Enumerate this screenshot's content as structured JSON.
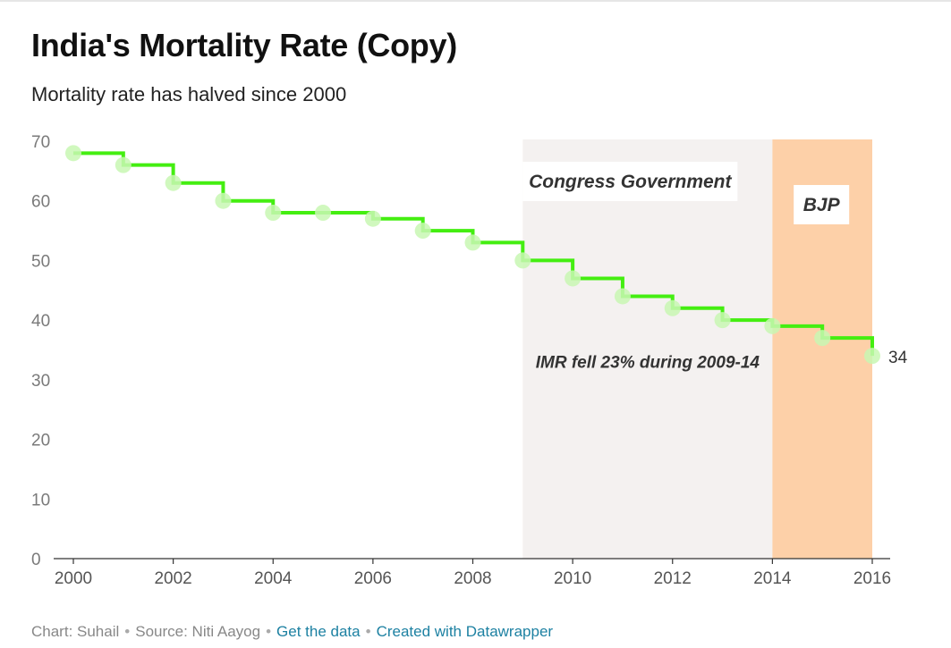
{
  "header": {
    "title": "India's Mortality Rate (Copy)",
    "subtitle": "Mortality rate has halved since 2000"
  },
  "footer": {
    "credit": "Chart: Suhail",
    "source": "Source: Niti Aayog",
    "get_data_label": "Get the data",
    "created_label": "Created with Datawrapper",
    "separator": "•"
  },
  "chart_data": {
    "type": "line",
    "interpolation": "step",
    "x": [
      2000,
      2001,
      2002,
      2003,
      2004,
      2005,
      2006,
      2007,
      2008,
      2009,
      2010,
      2011,
      2012,
      2013,
      2014,
      2015,
      2016
    ],
    "series": [
      {
        "values": [
          68,
          66,
          63,
          60,
          58,
          58,
          57,
          55,
          53,
          50,
          47,
          44,
          42,
          40,
          39,
          37,
          34
        ],
        "color": "#44ee11",
        "end_label": "34"
      }
    ],
    "xlim": [
      2000,
      2016
    ],
    "ylim": [
      0,
      70
    ],
    "x_ticks": [
      "2000",
      "2002",
      "2004",
      "2006",
      "2008",
      "2010",
      "2012",
      "2014",
      "2016"
    ],
    "y_ticks": [
      "0",
      "10",
      "20",
      "30",
      "40",
      "50",
      "60",
      "70"
    ],
    "grid": false,
    "ranges": [
      {
        "label": "Congress Government",
        "from": 2009,
        "to": 2014,
        "color": "#f4f1f0"
      },
      {
        "label": "BJP",
        "from": 2014,
        "to": 2016,
        "color": "#fdd0a8"
      }
    ],
    "annotations": [
      {
        "text": "IMR fell 23% during 2009-14",
        "x": 2011.5,
        "y": 32
      }
    ]
  }
}
